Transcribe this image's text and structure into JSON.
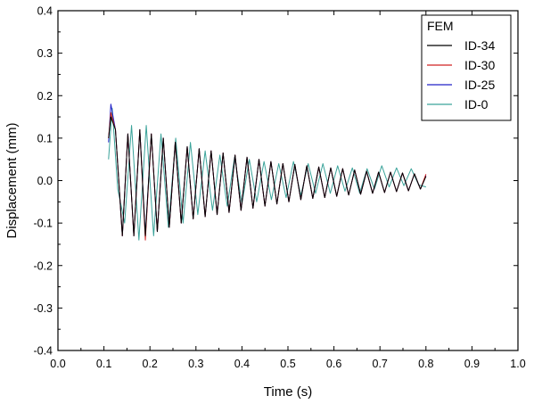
{
  "chart_data": {
    "type": "line",
    "xlabel": "Time (s)",
    "ylabel": "Displacement (mm)",
    "xlim": [
      0.0,
      1.0
    ],
    "ylim": [
      -0.4,
      0.4
    ],
    "x_ticks": [
      "0.0",
      "0.1",
      "0.2",
      "0.3",
      "0.4",
      "0.5",
      "0.6",
      "0.7",
      "0.8",
      "0.9",
      "1.0"
    ],
    "y_ticks": [
      "0.4",
      "0.3",
      "0.2",
      "0.1",
      "0.0",
      "-0.1",
      "-0.2",
      "-0.3",
      "-0.4"
    ],
    "grid": false,
    "legend": {
      "title": "FEM",
      "placement": "top-right",
      "entries": [
        "ID-34",
        "ID-30",
        "ID-25",
        "ID-0"
      ]
    },
    "series": [
      {
        "name": "ID-34",
        "color": "#000000",
        "x": [
          0.11,
          0.115,
          0.125,
          0.14,
          0.152,
          0.165,
          0.178,
          0.19,
          0.203,
          0.216,
          0.229,
          0.242,
          0.255,
          0.268,
          0.281,
          0.294,
          0.307,
          0.32,
          0.333,
          0.346,
          0.359,
          0.372,
          0.385,
          0.398,
          0.411,
          0.424,
          0.437,
          0.45,
          0.463,
          0.476,
          0.489,
          0.502,
          0.515,
          0.528,
          0.541,
          0.554,
          0.567,
          0.58,
          0.593,
          0.606,
          0.619,
          0.632,
          0.645,
          0.658,
          0.671,
          0.684,
          0.697,
          0.71,
          0.723,
          0.736,
          0.749,
          0.762,
          0.775,
          0.788,
          0.8
        ],
        "y": [
          0.1,
          0.15,
          0.12,
          -0.13,
          0.11,
          -0.13,
          0.12,
          -0.13,
          0.11,
          -0.12,
          0.1,
          -0.11,
          0.09,
          -0.1,
          0.08,
          -0.09,
          0.075,
          -0.085,
          0.07,
          -0.08,
          0.065,
          -0.075,
          0.06,
          -0.07,
          0.055,
          -0.065,
          0.05,
          -0.06,
          0.045,
          -0.055,
          0.04,
          -0.05,
          0.038,
          -0.045,
          0.035,
          -0.042,
          0.032,
          -0.04,
          0.03,
          -0.037,
          0.028,
          -0.034,
          0.025,
          -0.032,
          0.022,
          -0.03,
          0.02,
          -0.028,
          0.02,
          -0.026,
          0.018,
          -0.024,
          0.016,
          -0.02,
          0.01
        ]
      },
      {
        "name": "ID-30",
        "color": "#d02020",
        "x": [
          0.11,
          0.115,
          0.125,
          0.14,
          0.152,
          0.165,
          0.178,
          0.19,
          0.203,
          0.216,
          0.229,
          0.242,
          0.255,
          0.268,
          0.281,
          0.294,
          0.307,
          0.32,
          0.333,
          0.346,
          0.359,
          0.372,
          0.385,
          0.398,
          0.411,
          0.424,
          0.437,
          0.45,
          0.463,
          0.476,
          0.489,
          0.502,
          0.515,
          0.528,
          0.541,
          0.554,
          0.567,
          0.58,
          0.593,
          0.606,
          0.619,
          0.632,
          0.645,
          0.658,
          0.671,
          0.684,
          0.697,
          0.71,
          0.723,
          0.736,
          0.749,
          0.762,
          0.775,
          0.788,
          0.8
        ],
        "y": [
          0.1,
          0.16,
          0.12,
          -0.13,
          0.11,
          -0.13,
          0.12,
          -0.14,
          0.11,
          -0.12,
          0.1,
          -0.11,
          0.09,
          -0.1,
          0.08,
          -0.09,
          0.075,
          -0.085,
          0.07,
          -0.08,
          0.065,
          -0.075,
          0.06,
          -0.07,
          0.055,
          -0.065,
          0.05,
          -0.06,
          0.045,
          -0.055,
          0.04,
          -0.05,
          0.038,
          -0.045,
          0.035,
          -0.042,
          0.032,
          -0.04,
          0.03,
          -0.037,
          0.028,
          -0.034,
          0.025,
          -0.032,
          0.022,
          -0.03,
          0.02,
          -0.028,
          0.02,
          -0.026,
          0.018,
          -0.024,
          0.016,
          -0.02,
          0.015
        ]
      },
      {
        "name": "ID-25",
        "color": "#2020c8",
        "x": [
          0.11,
          0.115,
          0.125,
          0.14,
          0.152,
          0.165,
          0.178,
          0.19,
          0.203,
          0.216,
          0.229,
          0.242,
          0.255,
          0.268,
          0.281,
          0.294,
          0.307,
          0.32,
          0.333,
          0.346,
          0.359,
          0.372,
          0.385,
          0.398,
          0.411,
          0.424,
          0.437,
          0.45,
          0.463,
          0.476,
          0.489,
          0.502,
          0.515,
          0.528,
          0.541,
          0.554,
          0.567,
          0.58,
          0.593,
          0.606,
          0.619,
          0.632,
          0.645,
          0.658,
          0.671,
          0.684,
          0.697,
          0.71,
          0.723,
          0.736,
          0.749,
          0.762,
          0.775,
          0.788,
          0.8
        ],
        "y": [
          0.09,
          0.18,
          0.12,
          -0.13,
          0.11,
          -0.13,
          0.12,
          -0.13,
          0.11,
          -0.12,
          0.1,
          -0.11,
          0.09,
          -0.1,
          0.08,
          -0.09,
          0.075,
          -0.085,
          0.07,
          -0.08,
          0.065,
          -0.075,
          0.06,
          -0.07,
          0.055,
          -0.065,
          0.05,
          -0.06,
          0.045,
          -0.055,
          0.04,
          -0.05,
          0.038,
          -0.045,
          0.035,
          -0.042,
          0.032,
          -0.04,
          0.03,
          -0.037,
          0.028,
          -0.034,
          0.025,
          -0.032,
          0.022,
          -0.03,
          0.02,
          -0.028,
          0.02,
          -0.026,
          0.018,
          -0.024,
          0.016,
          -0.02,
          0.012
        ]
      },
      {
        "name": "ID-0",
        "color": "#3aa39a",
        "x": [
          0.11,
          0.118,
          0.13,
          0.145,
          0.16,
          0.176,
          0.192,
          0.208,
          0.224,
          0.24,
          0.256,
          0.272,
          0.288,
          0.304,
          0.32,
          0.336,
          0.352,
          0.368,
          0.384,
          0.4,
          0.416,
          0.432,
          0.448,
          0.464,
          0.48,
          0.496,
          0.512,
          0.528,
          0.544,
          0.56,
          0.576,
          0.592,
          0.608,
          0.624,
          0.64,
          0.656,
          0.672,
          0.688,
          0.704,
          0.72,
          0.736,
          0.752,
          0.768,
          0.784,
          0.8
        ],
        "y": [
          0.05,
          0.17,
          -0.02,
          -0.1,
          0.13,
          -0.14,
          0.13,
          -0.13,
          0.11,
          -0.11,
          0.1,
          -0.1,
          0.09,
          -0.08,
          0.07,
          -0.07,
          0.06,
          -0.06,
          0.055,
          -0.055,
          0.05,
          -0.05,
          0.045,
          -0.045,
          0.04,
          -0.04,
          0.045,
          -0.035,
          0.04,
          -0.03,
          0.04,
          -0.03,
          0.035,
          -0.025,
          0.03,
          -0.03,
          0.028,
          -0.02,
          0.035,
          -0.015,
          0.03,
          -0.012,
          0.028,
          -0.01,
          -0.015
        ]
      }
    ]
  }
}
